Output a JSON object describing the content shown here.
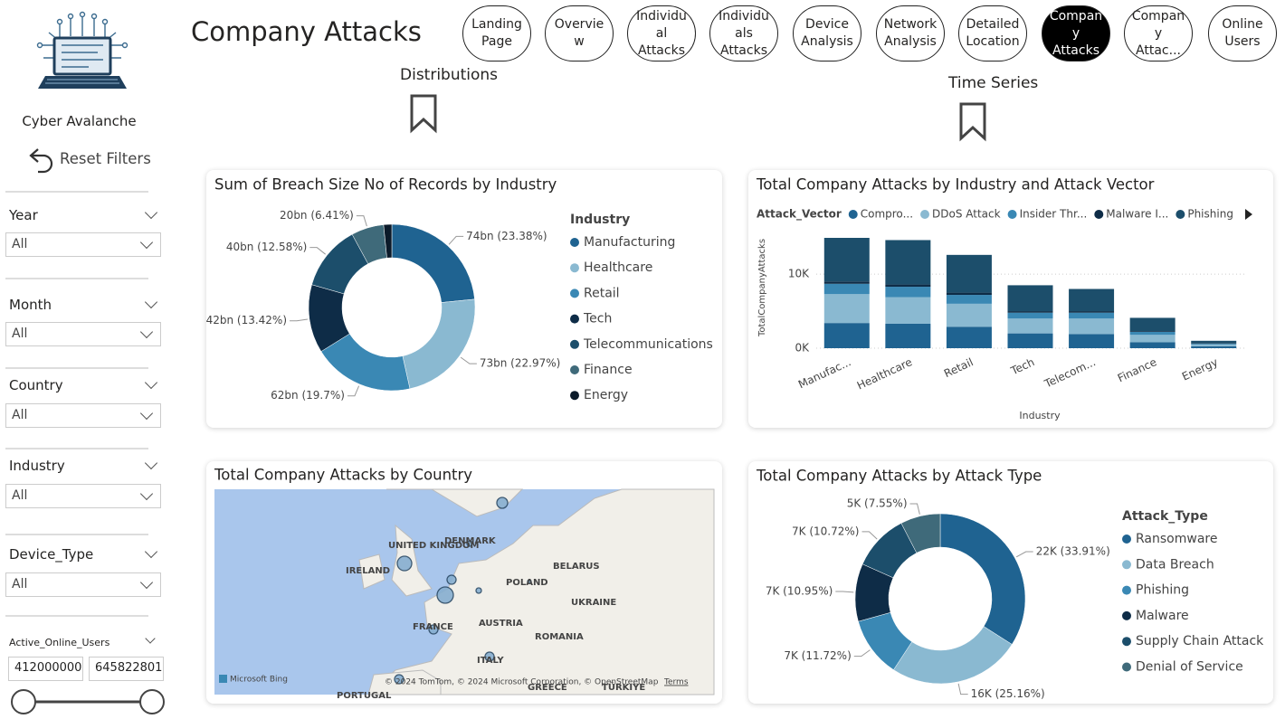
{
  "header": {
    "title": "Company Attacks",
    "brand": "Cyber Avalanche",
    "reset": "Reset Filters"
  },
  "nav": [
    "Landing Page",
    "Overview",
    "Individual Attacks",
    "Individuals Attacks",
    "Device Analysis",
    "Network Analysis",
    "Detailed Location",
    "Company Attacks",
    "Company Attac...",
    "Online Users"
  ],
  "sections": [
    "Distributions",
    "Time Series"
  ],
  "filters": [
    {
      "label": "Year",
      "value": "All"
    },
    {
      "label": "Month",
      "value": "All"
    },
    {
      "label": "Country",
      "value": "All"
    },
    {
      "label": "Industry",
      "value": "All"
    },
    {
      "label": "Device_Type",
      "value": "All"
    }
  ],
  "range": {
    "label": "Active_Online_Users",
    "min": 412000000,
    "max": 645822801
  },
  "chart_data": [
    {
      "type": "donut",
      "title": "Sum of Breach Size No of Records by Industry",
      "legend_title": "Industry",
      "categories": [
        "Manufacturing",
        "Healthcare",
        "Retail",
        "Tech",
        "Telecommunications",
        "Finance",
        "Energy"
      ],
      "values": [
        74,
        73,
        62,
        42,
        40,
        20,
        5
      ],
      "value_labels": [
        "74bn (23.38%)",
        "73bn (22.97%)",
        "62bn (19.7%)",
        "42bn (13.42%)",
        "40bn (12.58%)",
        "20bn (6.41%)",
        null
      ],
      "colors": [
        "#1f6391",
        "#8ab9d1",
        "#3a88b4",
        "#0e2c47",
        "#1c4e6b",
        "#3f6a7a",
        "#0b1a2a"
      ]
    },
    {
      "type": "stacked_bar",
      "title": "Total Company Attacks by Industry and Attack Vector",
      "legend_title": "Attack_Vector",
      "x_label": "Industry",
      "y_label": "TotalCompanyAttacks",
      "categories": [
        "Manufac...",
        "Healthcare",
        "Retail",
        "Tech",
        "Telecom...",
        "Finance",
        "Energy"
      ],
      "series": [
        {
          "name": "Compro...",
          "color": "#1f6391",
          "values": [
            3400,
            3300,
            2900,
            2000,
            1900,
            800,
            250
          ]
        },
        {
          "name": "DDoS Attack",
          "color": "#8ab9d1",
          "values": [
            3900,
            3600,
            3100,
            2000,
            2100,
            1000,
            250
          ]
        },
        {
          "name": "Insider Thr...",
          "color": "#3a88b4",
          "values": [
            1400,
            1400,
            1200,
            800,
            800,
            400,
            100
          ]
        },
        {
          "name": "Malware I...",
          "color": "#0e2c47",
          "values": [
            300,
            300,
            300,
            200,
            200,
            100,
            50
          ]
        },
        {
          "name": "Phishing",
          "color": "#1c4e6b",
          "values": [
            5900,
            6000,
            5100,
            3500,
            3000,
            1800,
            350
          ]
        }
      ],
      "ylim": [
        0,
        16000
      ],
      "yticks": [
        {
          "value": 0,
          "label": "0K"
        },
        {
          "value": 10000,
          "label": "10K"
        }
      ],
      "grid": true
    },
    {
      "type": "map",
      "title": "Total Company Attacks by Country",
      "places": [
        "UNITED KINGDOM",
        "IRELAND",
        "DENMARK",
        "POLAND",
        "BELARUS",
        "UKRAINE",
        "FRANCE",
        "AUSTRIA",
        "ROMANIA",
        "ITALY",
        "GREECE",
        "TÜRKIYE",
        "PORTUGAL"
      ],
      "provider": "Microsoft Bing",
      "attribution": "© 2024 TomTom, © 2024 Microsoft Corporation, © OpenStreetMap",
      "terms": "Terms"
    },
    {
      "type": "donut",
      "title": "Total Company Attacks by Attack Type",
      "legend_title": "Attack_Type",
      "categories": [
        "Ransomware",
        "Data Breach",
        "Phishing",
        "Malware",
        "Supply Chain Attack",
        "Denial of Service"
      ],
      "values": [
        22000,
        16300,
        7400,
        7100,
        6950,
        4900
      ],
      "value_labels": [
        "22K (33.91%)",
        "16K (25.16%)",
        "7K (11.72%)",
        "7K (10.95%)",
        "7K (10.72%)",
        "5K (7.55%)"
      ],
      "colors": [
        "#1f6391",
        "#8ab9d1",
        "#3a88b4",
        "#0e2c47",
        "#1c4e6b",
        "#3f6a7a"
      ]
    }
  ]
}
